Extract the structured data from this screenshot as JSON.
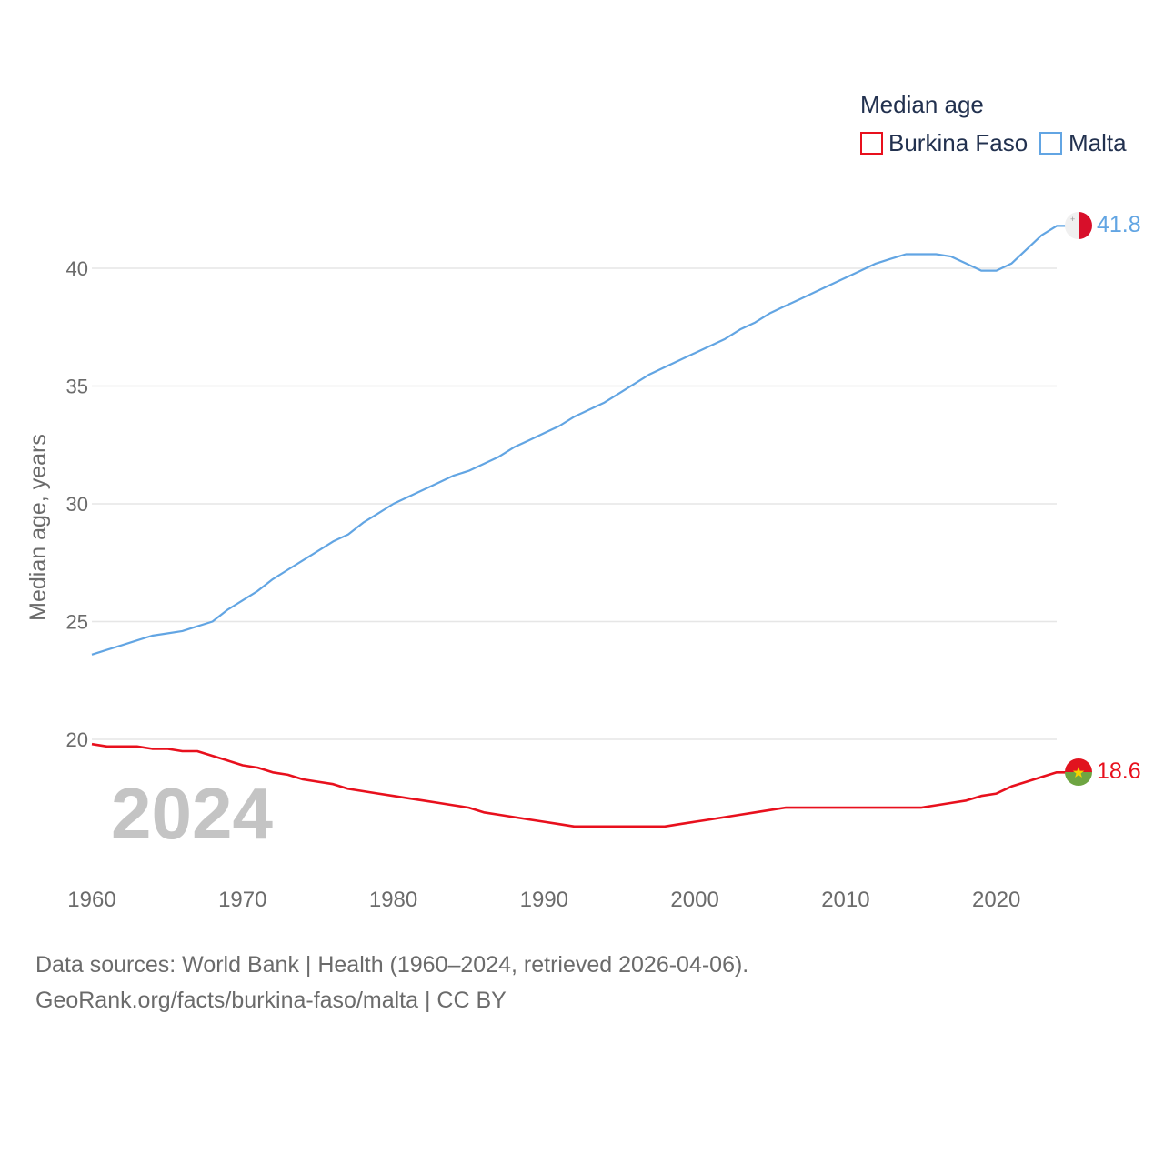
{
  "chart_data": {
    "type": "line",
    "title": "",
    "legend_title": "Median age",
    "xlabel": "",
    "ylabel": "Median age, years",
    "xlim": [
      1960,
      2024
    ],
    "ylim": [
      15.3,
      42.5
    ],
    "yticks": [
      20,
      25,
      30,
      35,
      40
    ],
    "xticks": [
      1960,
      1970,
      1980,
      1990,
      2000,
      2010,
      2020
    ],
    "year_label": "2024",
    "legend_position": "top-right",
    "grid": true,
    "x": [
      1960,
      1961,
      1962,
      1963,
      1964,
      1965,
      1966,
      1967,
      1968,
      1969,
      1970,
      1971,
      1972,
      1973,
      1974,
      1975,
      1976,
      1977,
      1978,
      1979,
      1980,
      1981,
      1982,
      1983,
      1984,
      1985,
      1986,
      1987,
      1988,
      1989,
      1990,
      1991,
      1992,
      1993,
      1994,
      1995,
      1996,
      1997,
      1998,
      1999,
      2000,
      2001,
      2002,
      2003,
      2004,
      2005,
      2006,
      2007,
      2008,
      2009,
      2010,
      2011,
      2012,
      2013,
      2014,
      2015,
      2016,
      2017,
      2018,
      2019,
      2020,
      2021,
      2022,
      2023,
      2024
    ],
    "series": [
      {
        "name": "Burkina Faso",
        "color": "#e8101d",
        "end_label": "18.6",
        "flag": "burkina-faso-flag",
        "values": [
          19.8,
          19.7,
          19.7,
          19.7,
          19.6,
          19.6,
          19.5,
          19.5,
          19.3,
          19.1,
          18.9,
          18.8,
          18.6,
          18.5,
          18.3,
          18.2,
          18.1,
          17.9,
          17.8,
          17.7,
          17.6,
          17.5,
          17.4,
          17.3,
          17.2,
          17.1,
          16.9,
          16.8,
          16.7,
          16.6,
          16.5,
          16.4,
          16.3,
          16.3,
          16.3,
          16.3,
          16.3,
          16.3,
          16.3,
          16.4,
          16.5,
          16.6,
          16.7,
          16.8,
          16.9,
          17.0,
          17.1,
          17.1,
          17.1,
          17.1,
          17.1,
          17.1,
          17.1,
          17.1,
          17.1,
          17.1,
          17.2,
          17.3,
          17.4,
          17.6,
          17.7,
          18.0,
          18.2,
          18.4,
          18.6
        ]
      },
      {
        "name": "Malta",
        "color": "#62a5e3",
        "end_label": "41.8",
        "flag": "malta-flag",
        "values": [
          23.6,
          23.8,
          24.0,
          24.2,
          24.4,
          24.5,
          24.6,
          24.8,
          25.0,
          25.5,
          25.9,
          26.3,
          26.8,
          27.2,
          27.6,
          28.0,
          28.4,
          28.7,
          29.2,
          29.6,
          30.0,
          30.3,
          30.6,
          30.9,
          31.2,
          31.4,
          31.7,
          32.0,
          32.4,
          32.7,
          33.0,
          33.3,
          33.7,
          34.0,
          34.3,
          34.7,
          35.1,
          35.5,
          35.8,
          36.1,
          36.4,
          36.7,
          37.0,
          37.4,
          37.7,
          38.1,
          38.4,
          38.7,
          39.0,
          39.3,
          39.6,
          39.9,
          40.2,
          40.4,
          40.6,
          40.6,
          40.6,
          40.5,
          40.2,
          39.9,
          39.9,
          40.2,
          40.8,
          41.4,
          41.8
        ]
      }
    ]
  },
  "source": {
    "line1": "Data sources: World Bank | Health (1960–2024, retrieved 2026-04-06).",
    "line2": "GeoRank.org/facts/burkina-faso/malta | CC BY"
  }
}
